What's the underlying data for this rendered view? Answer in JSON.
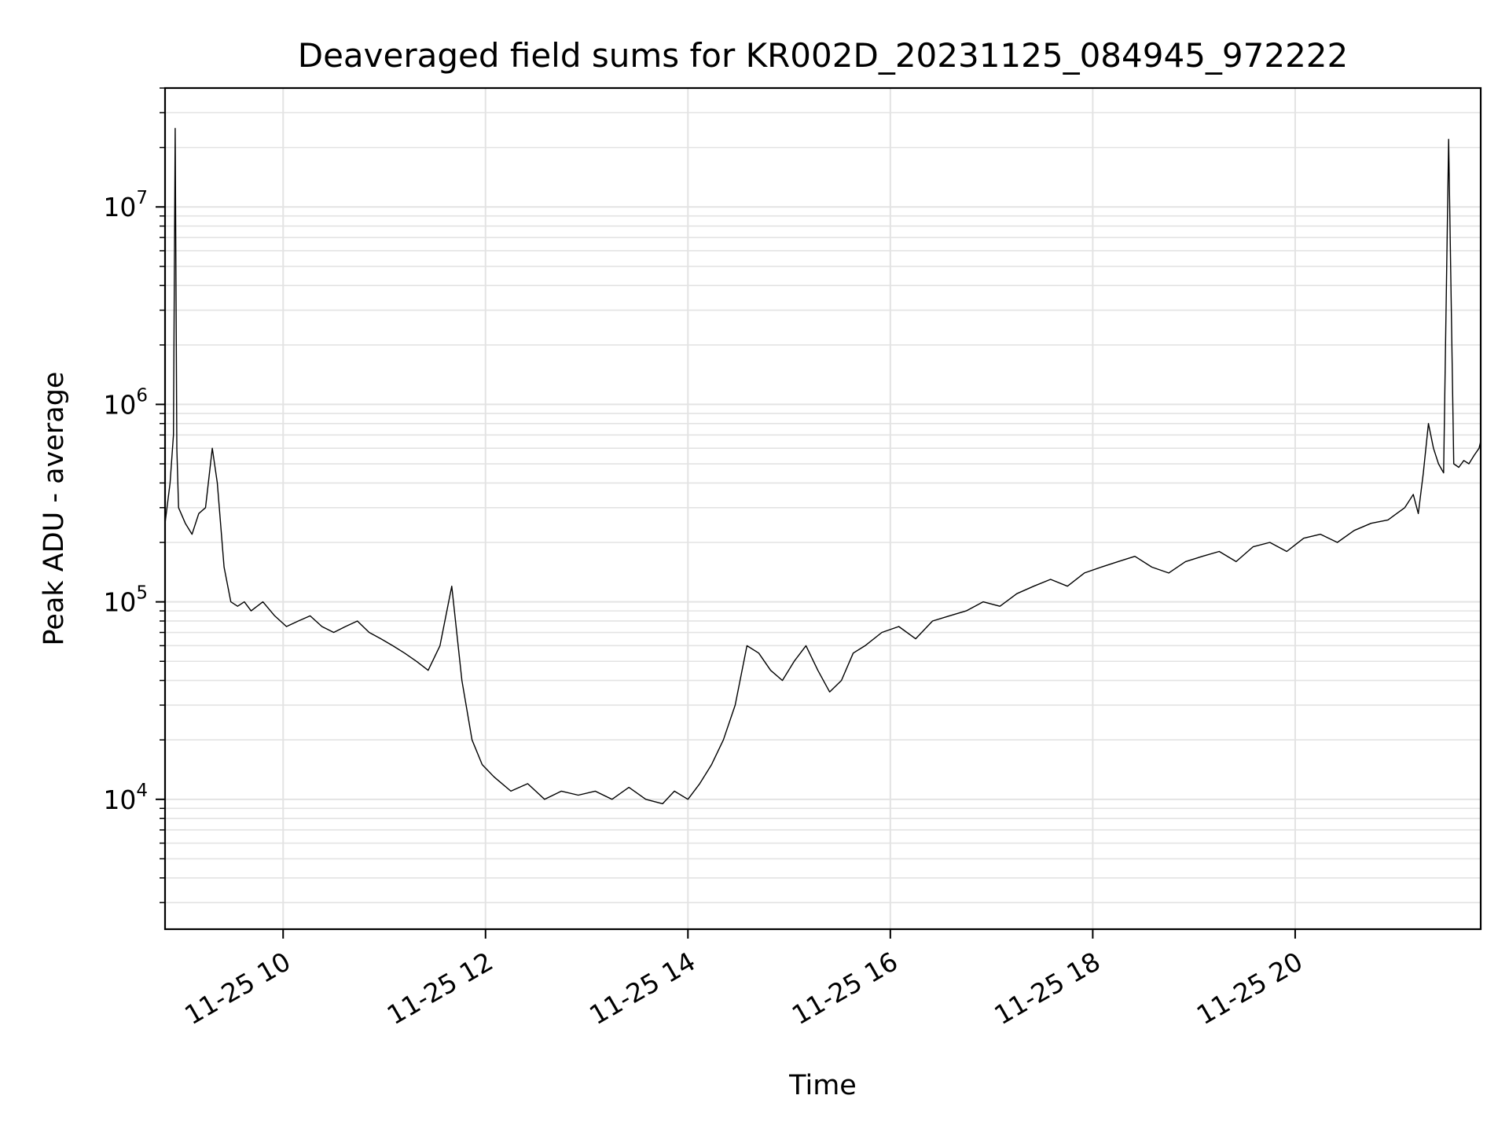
{
  "chart_data": {
    "type": "line",
    "title": "Deaveraged field sums for KR002D_20231125_084945_972222",
    "xlabel": "Time",
    "ylabel": "Peak ADU - average",
    "yscale": "log",
    "xlim": [
      "11-25 08:50",
      "11-25 21:50"
    ],
    "ylim": [
      2200,
      40000000
    ],
    "x_ticks": [
      "11-25 10",
      "11-25 12",
      "11-25 14",
      "11-25 16",
      "11-25 18",
      "11-25 20"
    ],
    "y_ticks": [
      {
        "base": "10",
        "exp": "4",
        "value": 10000
      },
      {
        "base": "10",
        "exp": "5",
        "value": 100000
      },
      {
        "base": "10",
        "exp": "6",
        "value": 1000000
      },
      {
        "base": "10",
        "exp": "7",
        "value": 10000000
      }
    ],
    "grid": true,
    "line_color": "#000000",
    "series": [
      {
        "x": [
          "08:50",
          "08:53",
          "08:55",
          "08:56",
          "08:57",
          "08:58",
          "09:02",
          "09:06",
          "09:10",
          "09:14",
          "09:18",
          "09:21",
          "09:25",
          "09:29",
          "09:33",
          "09:37",
          "09:41",
          "09:48",
          "09:55",
          "10:02",
          "10:09",
          "10:16",
          "10:23",
          "10:30",
          "10:37",
          "10:44",
          "10:51",
          "10:58",
          "11:05",
          "11:12",
          "11:19",
          "11:26",
          "11:33",
          "11:40",
          "11:46",
          "11:52",
          "11:58",
          "12:05",
          "12:15",
          "12:25",
          "12:35",
          "12:45",
          "12:55",
          "13:05",
          "13:15",
          "13:25",
          "13:35",
          "13:45",
          "13:52",
          "14:00",
          "14:07",
          "14:14",
          "14:21",
          "14:28",
          "14:35",
          "14:42",
          "14:49",
          "14:56",
          "15:03",
          "15:10",
          "15:17",
          "15:24",
          "15:31",
          "15:38",
          "15:45",
          "15:55",
          "16:05",
          "16:15",
          "16:25",
          "16:35",
          "16:45",
          "16:55",
          "17:05",
          "17:15",
          "17:25",
          "17:35",
          "17:45",
          "17:55",
          "18:05",
          "18:15",
          "18:25",
          "18:35",
          "18:45",
          "18:55",
          "19:05",
          "19:15",
          "19:25",
          "19:35",
          "19:45",
          "19:55",
          "20:05",
          "20:15",
          "20:25",
          "20:35",
          "20:45",
          "20:55",
          "21:05",
          "21:10",
          "21:13",
          "21:16",
          "21:19",
          "21:22",
          "21:25",
          "21:28",
          "21:31",
          "21:34",
          "21:37",
          "21:40",
          "21:43",
          "21:46",
          "21:49",
          "21:50"
        ],
        "y": [
          250000,
          400000,
          700000,
          25000000,
          600000,
          300000,
          250000,
          220000,
          280000,
          300000,
          600000,
          400000,
          150000,
          100000,
          95000,
          100000,
          90000,
          100000,
          85000,
          75000,
          80000,
          85000,
          75000,
          70000,
          75000,
          80000,
          70000,
          65000,
          60000,
          55000,
          50000,
          45000,
          60000,
          120000,
          40000,
          20000,
          15000,
          13000,
          11000,
          12000,
          10000,
          11000,
          10500,
          11000,
          10000,
          11500,
          10000,
          9500,
          11000,
          10000,
          12000,
          15000,
          20000,
          30000,
          60000,
          55000,
          45000,
          40000,
          50000,
          60000,
          45000,
          35000,
          40000,
          55000,
          60000,
          70000,
          75000,
          65000,
          80000,
          85000,
          90000,
          100000,
          95000,
          110000,
          120000,
          130000,
          120000,
          140000,
          150000,
          160000,
          170000,
          150000,
          140000,
          160000,
          170000,
          180000,
          160000,
          190000,
          200000,
          180000,
          210000,
          220000,
          200000,
          230000,
          250000,
          260000,
          300000,
          350000,
          280000,
          450000,
          800000,
          600000,
          500000,
          450000,
          22000000,
          500000,
          480000,
          520000,
          500000,
          550000,
          600000,
          650000
        ]
      }
    ]
  }
}
